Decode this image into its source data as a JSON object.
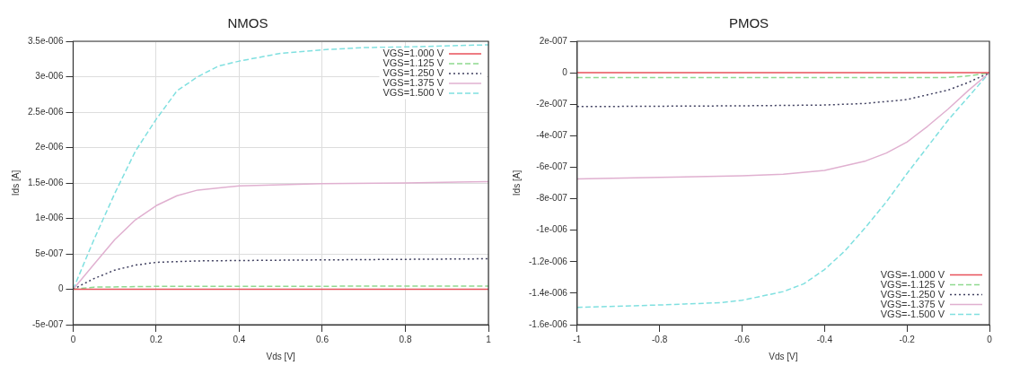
{
  "chart_data": [
    {
      "type": "line",
      "title": "NMOS",
      "xlabel": "Vds [V]",
      "ylabel": "Ids [A]",
      "xlim": [
        0,
        1
      ],
      "xticks": [
        0,
        0.2,
        0.4,
        0.6,
        0.8,
        1
      ],
      "ylim": [
        -5e-07,
        3.5e-06
      ],
      "yticks": [
        {
          "value": -5e-07,
          "label": "-5e-007"
        },
        {
          "value": 0,
          "label": "0"
        },
        {
          "value": 5e-07,
          "label": "5e-007"
        },
        {
          "value": 1e-06,
          "label": "1e-006"
        },
        {
          "value": 1.5e-06,
          "label": "1.5e-006"
        },
        {
          "value": 2e-06,
          "label": "2e-006"
        },
        {
          "value": 2.5e-06,
          "label": "2.5e-006"
        },
        {
          "value": 3e-06,
          "label": "3e-006"
        },
        {
          "value": 3.5e-06,
          "label": "3.5e-006"
        }
      ],
      "grid": true,
      "legend": "top right",
      "series": [
        {
          "name": "VGS=1.000 V",
          "color": "#e8505a",
          "line_style": "solid",
          "x": [
            0,
            0.5,
            1
          ],
          "values": [
            0,
            0,
            0
          ]
        },
        {
          "name": "VGS=1.125 V",
          "color": "#8fd98f",
          "line_style": "dashed",
          "x": [
            0,
            0.05,
            0.2,
            1
          ],
          "values": [
            0,
            3e-08,
            4e-08,
            4.5e-08
          ]
        },
        {
          "name": "VGS=1.250 V",
          "color": "#404060",
          "line_style": "dotted",
          "x": [
            0,
            0.05,
            0.1,
            0.15,
            0.2,
            0.3,
            0.5,
            1
          ],
          "values": [
            0,
            1.5e-07,
            2.7e-07,
            3.4e-07,
            3.8e-07,
            4e-07,
            4.1e-07,
            4.3e-07
          ]
        },
        {
          "name": "VGS=1.375 V",
          "color": "#e0b0d0",
          "line_style": "solid",
          "x": [
            0,
            0.05,
            0.1,
            0.15,
            0.2,
            0.25,
            0.3,
            0.4,
            0.6,
            0.8,
            1
          ],
          "values": [
            0,
            3.5e-07,
            7e-07,
            9.8e-07,
            1.18e-06,
            1.32e-06,
            1.4e-06,
            1.46e-06,
            1.49e-06,
            1.5e-06,
            1.52e-06
          ]
        },
        {
          "name": "VGS=1.500 V",
          "color": "#80e0e0",
          "line_style": "dashed",
          "x": [
            0,
            0.05,
            0.1,
            0.15,
            0.2,
            0.25,
            0.3,
            0.35,
            0.4,
            0.5,
            0.6,
            0.7,
            0.8,
            1
          ],
          "values": [
            0,
            7e-07,
            1.35e-06,
            1.95e-06,
            2.4e-06,
            2.8e-06,
            3e-06,
            3.15e-06,
            3.22e-06,
            3.33e-06,
            3.38e-06,
            3.41e-06,
            3.42e-06,
            3.45e-06
          ]
        }
      ]
    },
    {
      "type": "line",
      "title": "PMOS",
      "xlabel": "Vds [V]",
      "ylabel": "Ids [A]",
      "xlim": [
        -1,
        0
      ],
      "xticks": [
        -1,
        -0.8,
        -0.6,
        -0.4,
        -0.2,
        0
      ],
      "ylim": [
        -1.6e-06,
        2e-07
      ],
      "yticks": [
        {
          "value": -1.6e-06,
          "label": "-1.6e-006"
        },
        {
          "value": -1.4e-06,
          "label": "-1.4e-006"
        },
        {
          "value": -1.2e-06,
          "label": "-1.2e-006"
        },
        {
          "value": -1e-06,
          "label": "-1e-006"
        },
        {
          "value": -8e-07,
          "label": "-8e-007"
        },
        {
          "value": -6e-07,
          "label": "-6e-007"
        },
        {
          "value": -4e-07,
          "label": "-4e-007"
        },
        {
          "value": -2e-07,
          "label": "-2e-007"
        },
        {
          "value": 0,
          "label": "0"
        },
        {
          "value": 2e-07,
          "label": "2e-007"
        }
      ],
      "legend": "bottom right",
      "series": [
        {
          "name": "VGS=-1.000 V",
          "color": "#e8505a",
          "line_style": "solid",
          "x": [
            -1,
            -0.5,
            0
          ],
          "values": [
            0,
            0,
            0
          ]
        },
        {
          "name": "VGS=-1.125 V",
          "color": "#8fd98f",
          "line_style": "dashed",
          "x": [
            -1,
            -0.5,
            -0.1,
            -0.05,
            0
          ],
          "values": [
            -3e-08,
            -3e-08,
            -3e-08,
            -2e-08,
            0
          ]
        },
        {
          "name": "VGS=-1.250 V",
          "color": "#404060",
          "line_style": "dotted",
          "x": [
            -1,
            -0.6,
            -0.4,
            -0.3,
            -0.2,
            -0.1,
            -0.05,
            0
          ],
          "values": [
            -2.15e-07,
            -2.1e-07,
            -2.05e-07,
            -1.95e-07,
            -1.7e-07,
            -1.1e-07,
            -6e-08,
            0
          ]
        },
        {
          "name": "VGS=-1.375 V",
          "color": "#e0b0d0",
          "line_style": "solid",
          "x": [
            -1,
            -0.8,
            -0.6,
            -0.5,
            -0.4,
            -0.3,
            -0.25,
            -0.2,
            -0.15,
            -0.1,
            -0.05,
            0
          ],
          "values": [
            -6.75e-07,
            -6.65e-07,
            -6.55e-07,
            -6.45e-07,
            -6.2e-07,
            -5.6e-07,
            -5.1e-07,
            -4.4e-07,
            -3.4e-07,
            -2.3e-07,
            -1.1e-07,
            0
          ]
        },
        {
          "name": "VGS=-1.500 V",
          "color": "#80e0e0",
          "line_style": "dashed",
          "x": [
            -1,
            -0.8,
            -0.65,
            -0.6,
            -0.5,
            -0.45,
            -0.4,
            -0.35,
            -0.3,
            -0.25,
            -0.2,
            -0.15,
            -0.1,
            -0.05,
            0
          ],
          "values": [
            -1.49e-06,
            -1.475e-06,
            -1.46e-06,
            -1.445e-06,
            -1.39e-06,
            -1.34e-06,
            -1.25e-06,
            -1.13e-06,
            -9.8e-07,
            -8.2e-07,
            -6.4e-07,
            -4.7e-07,
            -3e-07,
            -1.5e-07,
            0
          ]
        }
      ]
    }
  ]
}
